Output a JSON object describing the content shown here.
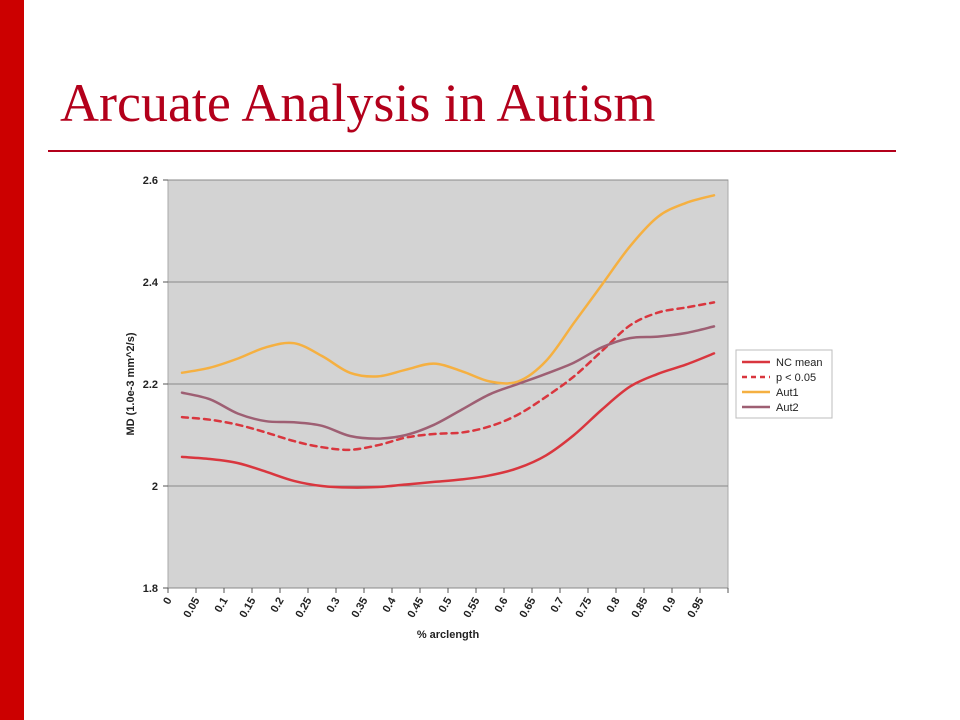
{
  "slide": {
    "title": "Arcuate Analysis in Autism",
    "accent_color": "#cc0000",
    "title_color": "#b3001b"
  },
  "chart_data": {
    "type": "line",
    "title": "",
    "xlabel": "% arclength",
    "ylabel": "MD (1.0e-3 mm^2/s)",
    "ylim": [
      1.8,
      2.6
    ],
    "yticks": [
      "1.8",
      "2",
      "2.2",
      "2.4",
      "2.6"
    ],
    "grid": "horizontal",
    "legend_position": "right",
    "plot_background": "#d3d3d3",
    "x": [
      "0",
      "0.05",
      "0.1",
      "0.15",
      "0.2",
      "0.25",
      "0.3",
      "0.35",
      "0.4",
      "0.45",
      "0.5",
      "0.55",
      "0.6",
      "0.65",
      "0.7",
      "0.75",
      "0.8",
      "0.85",
      "0.9",
      "0.95"
    ],
    "series": [
      {
        "name": "NC mean",
        "color": "#d9363e",
        "dash": "solid",
        "values": [
          2.057,
          2.053,
          2.045,
          2.028,
          2.01,
          2.0,
          1.997,
          1.998,
          2.003,
          2.008,
          2.013,
          2.021,
          2.035,
          2.06,
          2.1,
          2.15,
          2.195,
          2.22,
          2.238,
          2.26
        ]
      },
      {
        "name": "p < 0.05",
        "color": "#d9363e",
        "dash": "dashed",
        "values": [
          2.135,
          2.13,
          2.12,
          2.105,
          2.088,
          2.076,
          2.071,
          2.08,
          2.095,
          2.102,
          2.105,
          2.117,
          2.14,
          2.175,
          2.215,
          2.265,
          2.315,
          2.34,
          2.35,
          2.36
        ]
      },
      {
        "name": "Aut1",
        "color": "#f5b041",
        "dash": "solid",
        "values": [
          2.222,
          2.232,
          2.25,
          2.272,
          2.28,
          2.255,
          2.222,
          2.215,
          2.228,
          2.24,
          2.225,
          2.205,
          2.205,
          2.245,
          2.32,
          2.395,
          2.47,
          2.528,
          2.555,
          2.57
        ]
      },
      {
        "name": "Aut2",
        "color": "#9e5f73",
        "dash": "solid",
        "values": [
          2.183,
          2.17,
          2.142,
          2.127,
          2.125,
          2.118,
          2.098,
          2.093,
          2.1,
          2.12,
          2.15,
          2.18,
          2.2,
          2.22,
          2.242,
          2.272,
          2.29,
          2.293,
          2.3,
          2.313
        ]
      }
    ]
  }
}
